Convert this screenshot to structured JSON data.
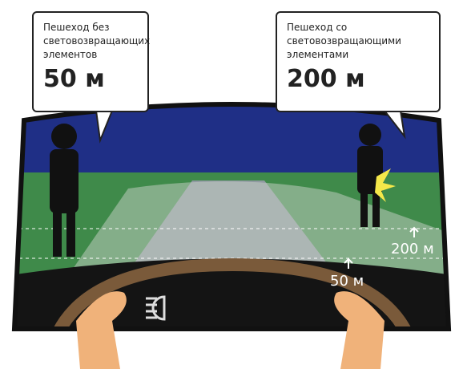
{
  "callouts": [
    {
      "label": "Пешеход без световозвращающих элементов",
      "distance": "50 м"
    },
    {
      "label": "Пешеход со световозвращающими элементами",
      "distance": "200 м"
    }
  ],
  "road_markers": [
    "200 м",
    "50 м"
  ]
}
